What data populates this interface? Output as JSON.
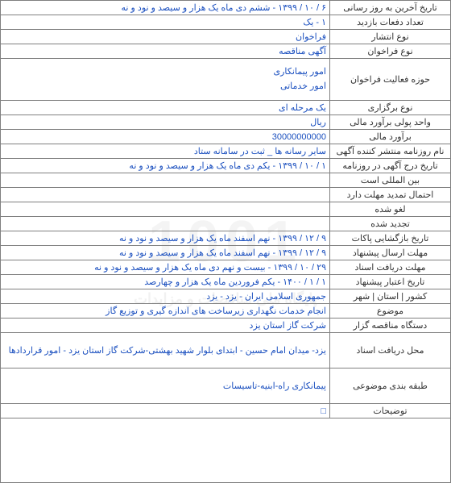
{
  "watermark": {
    "main": "1001",
    "sub": "پایگاه ملی مناقصات و مزایدات"
  },
  "rows": [
    {
      "label": "تاریخ آخرین به روز رسانی",
      "value": "۶ / ۱۰ / ۱۳۹۹ - ششم دی ماه یک هزار و سیصد و نود و نه"
    },
    {
      "label": "تعداد دفعات بازدید",
      "value": "۱ - یک"
    },
    {
      "label": "نوع انتشار",
      "value": "فراخوان"
    },
    {
      "label": "نوع فراخوان",
      "value": "آگهی مناقصه"
    },
    {
      "label": "حوزه فعالیت فراخوان",
      "value_lines": [
        "امور پیمانکاری",
        "امور خدماتی"
      ],
      "tall": true
    },
    {
      "label": "نوع برگزاری",
      "value": "یک مرحله ای"
    },
    {
      "label": "واحد پولی برآورد مالی",
      "value": "ریال"
    },
    {
      "label": "برآورد مالی",
      "value": "30000000000"
    },
    {
      "label": "نام روزنامه منتشر کننده آگهی",
      "value": "سایر رسانه ها _ ثبت در سامانه ستاد"
    },
    {
      "label": "تاریخ درج آگهی در روزنامه",
      "value": "۱ / ۱۰ / ۱۳۹۹ - یکم دی ماه یک هزار و سیصد و نود و نه"
    },
    {
      "label": "بین المللی است",
      "value": ""
    },
    {
      "label": "احتمال تمدید مهلت دارد",
      "value": ""
    },
    {
      "label": "لغو شده",
      "value": ""
    },
    {
      "label": "تجدید شده",
      "value": ""
    },
    {
      "label": "تاریخ بازگشایی پاکات",
      "value": "۹ / ۱۲ / ۱۳۹۹ - نهم اسفند ماه یک هزار و سیصد و نود و نه"
    },
    {
      "label": "مهلت ارسال پیشنهاد",
      "value": "۹ / ۱۲ / ۱۳۹۹ - نهم اسفند ماه یک هزار و سیصد و نود و نه"
    },
    {
      "label": "مهلت دریافت اسناد",
      "value": "۲۹ / ۱۰ / ۱۳۹۹ - بیست و نهم دی ماه یک هزار و سیصد و نود و نه"
    },
    {
      "label": "تاریخ اعتبار پیشنهاد",
      "value": "۱ / ۱ / ۱۴۰۰ - یکم فروردین ماه یک هزار و چهارصد"
    },
    {
      "label": "کشور | استان | شهر",
      "value": "جمهوری اسلامی ایران - یزد - یزد"
    },
    {
      "label": "موضوع",
      "value": "انجام خدمات نگهداری زیرساخت های اندازه گیری و توزیع گاز"
    },
    {
      "label": "دستگاه مناقصه گزار",
      "value": "شرکت گاز استان یزد"
    },
    {
      "label": "محل دریافت اسناد",
      "value": "یزد- میدان امام حسین - ابتدای بلوار شهید بهشتی-شرکت گاز استان یزد - امور قراردادها",
      "taller": true
    },
    {
      "label": "طبقه بندی موضوعی",
      "value": "پیمانکاری راه-ابنیه-تاسیسات",
      "taller": true
    },
    {
      "label": "توضیحات",
      "value": "□"
    }
  ],
  "colors": {
    "border": "#808080",
    "label_text": "#333333",
    "value_text": "#1a4fbf",
    "background": "#ffffff"
  }
}
